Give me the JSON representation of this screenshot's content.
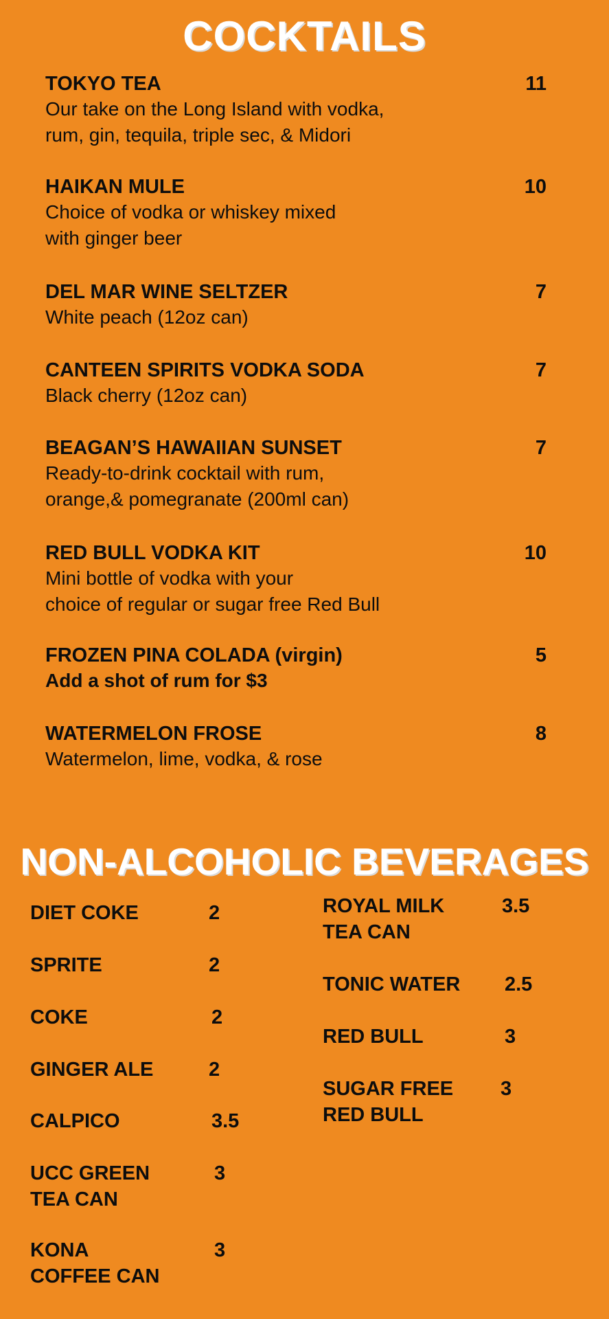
{
  "cocktails": {
    "title": "COCKTAILS",
    "items": [
      {
        "name": "TOKYO TEA",
        "price": "11",
        "desc": "Our take on the Long Island with vodka,\nrum, gin, tequila, triple sec, & Midori"
      },
      {
        "name": "HAIKAN MULE",
        "price": "10",
        "desc": "Choice of vodka or whiskey mixed\nwith ginger beer"
      },
      {
        "name": "DEL MAR WINE SELTZER",
        "price": "7",
        "desc": "White peach (12oz can)"
      },
      {
        "name": "CANTEEN SPIRITS VODKA SODA",
        "price": "7",
        "desc": "Black cherry (12oz can)"
      },
      {
        "name": "BEAGAN’S HAWAIIAN SUNSET",
        "price": "7",
        "desc": "Ready-to-drink cocktail with rum,\norange,& pomegranate (200ml can)"
      },
      {
        "name": "RED BULL VODKA KIT",
        "price": "10",
        "desc": "Mini bottle of vodka with your\nchoice of regular or sugar free Red Bull"
      },
      {
        "name": "FROZEN PINA COLADA (virgin)",
        "price": "5",
        "desc": "Add a shot of rum for $3",
        "desc_bold": true
      },
      {
        "name": "WATERMELON FROSE",
        "price": "8",
        "desc": "Watermelon, lime, vodka, & rose"
      }
    ]
  },
  "non_alcoholic": {
    "title": "NON-ALCOHOLIC BEVERAGES",
    "left": [
      {
        "name": "DIET COKE",
        "price": "2"
      },
      {
        "name": "SPRITE",
        "price": "2"
      },
      {
        "name": "COKE",
        "price": "2"
      },
      {
        "name": "GINGER ALE",
        "price": "2"
      },
      {
        "name": "CALPICO",
        "price": "3.5"
      },
      {
        "name": "UCC GREEN\nTEA CAN",
        "price": "3"
      },
      {
        "name": "KONA\nCOFFEE CAN",
        "price": "3"
      }
    ],
    "right": [
      {
        "name": "ROYAL MILK\nTEA CAN",
        "price": "3.5"
      },
      {
        "name": "TONIC WATER",
        "price": "2.5"
      },
      {
        "name": "RED BULL",
        "price": "3"
      },
      {
        "name": "SUGAR FREE\nRED BULL",
        "price": "3"
      }
    ]
  },
  "colors": {
    "background": "#ef8a20",
    "heading": "#ffffff",
    "text": "#0d0d0d"
  }
}
